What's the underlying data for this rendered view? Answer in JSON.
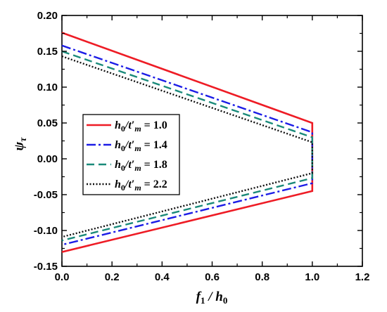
{
  "chart_data": {
    "type": "line",
    "title": "",
    "xlabel": "f1 / h0",
    "ylabel": "ψτ",
    "xlim": [
      0.0,
      1.2
    ],
    "ylim": [
      -0.15,
      0.2
    ],
    "xticks": [
      0.0,
      0.2,
      0.4,
      0.6,
      0.8,
      1.0,
      1.2
    ],
    "xtick_labels": [
      "0.0",
      "0.2",
      "0.4",
      "0.6",
      "0.8",
      "1.0",
      "1.2"
    ],
    "yticks": [
      -0.15,
      -0.1,
      -0.05,
      0.0,
      0.05,
      0.1,
      0.15,
      0.2
    ],
    "ytick_labels": [
      "-0.15",
      "-0.10",
      "-0.05",
      "0.00",
      "0.05",
      "0.10",
      "0.15",
      "0.20"
    ],
    "grid": false,
    "legend_position": "center-left",
    "series": [
      {
        "name": "h0/t′m = 1.0",
        "ratio": "1.0",
        "color": "#ee1c25",
        "dash": "solid",
        "upper": {
          "x": [
            0.0,
            1.0
          ],
          "y": [
            0.176,
            0.05
          ]
        },
        "lower": {
          "x": [
            0.0,
            1.0
          ],
          "y": [
            -0.13,
            -0.045
          ]
        }
      },
      {
        "name": "h0/t′m = 1.4",
        "ratio": "1.4",
        "color": "#1c1ce6",
        "dash": "dashdot",
        "upper": {
          "x": [
            0.0,
            1.0
          ],
          "y": [
            0.158,
            0.037
          ]
        },
        "lower": {
          "x": [
            0.0,
            1.0
          ],
          "y": [
            -0.12,
            -0.034
          ]
        }
      },
      {
        "name": "h0/t′m = 1.8",
        "ratio": "1.8",
        "color": "#1a8a7a",
        "dash": "dash",
        "upper": {
          "x": [
            0.0,
            1.0
          ],
          "y": [
            0.15,
            0.03
          ]
        },
        "lower": {
          "x": [
            0.0,
            1.0
          ],
          "y": [
            -0.114,
            -0.027
          ]
        }
      },
      {
        "name": "h0/t′m = 2.2",
        "ratio": "2.2",
        "color": "#111111",
        "dash": "dot",
        "upper": {
          "x": [
            0.0,
            1.0
          ],
          "y": [
            0.143,
            0.023
          ]
        },
        "lower": {
          "x": [
            0.0,
            1.0
          ],
          "y": [
            -0.109,
            -0.02
          ]
        }
      }
    ]
  }
}
